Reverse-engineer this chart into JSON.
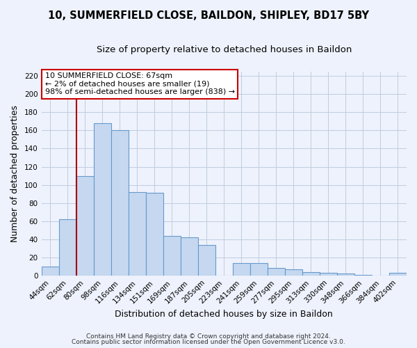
{
  "title": "10, SUMMERFIELD CLOSE, BAILDON, SHIPLEY, BD17 5BY",
  "subtitle": "Size of property relative to detached houses in Baildon",
  "xlabel": "Distribution of detached houses by size in Baildon",
  "ylabel": "Number of detached properties",
  "categories": [
    "44sqm",
    "62sqm",
    "80sqm",
    "98sqm",
    "116sqm",
    "134sqm",
    "151sqm",
    "169sqm",
    "187sqm",
    "205sqm",
    "223sqm",
    "241sqm",
    "259sqm",
    "277sqm",
    "295sqm",
    "313sqm",
    "330sqm",
    "348sqm",
    "366sqm",
    "384sqm",
    "402sqm"
  ],
  "values": [
    10,
    62,
    110,
    168,
    160,
    92,
    91,
    44,
    42,
    34,
    0,
    14,
    14,
    8,
    7,
    4,
    3,
    2,
    1,
    0,
    3
  ],
  "bar_color": "#c5d8f0",
  "bar_edge_color": "#6699cc",
  "ylim": [
    0,
    225
  ],
  "yticks": [
    0,
    20,
    40,
    60,
    80,
    100,
    120,
    140,
    160,
    180,
    200,
    220
  ],
  "vline_x_index": 1,
  "vline_color": "#aa0000",
  "annotation_line1": "10 SUMMERFIELD CLOSE: 67sqm",
  "annotation_line2": "← 2% of detached houses are smaller (19)",
  "annotation_line3": "98% of semi-detached houses are larger (838) →",
  "footnote1": "Contains HM Land Registry data © Crown copyright and database right 2024.",
  "footnote2": "Contains public sector information licensed under the Open Government Licence v3.0.",
  "background_color": "#eef2fc",
  "grid_color": "#c0cce0",
  "title_fontsize": 10.5,
  "subtitle_fontsize": 9.5,
  "label_fontsize": 9,
  "tick_fontsize": 7.5,
  "annotation_fontsize": 8,
  "footnote_fontsize": 6.5
}
